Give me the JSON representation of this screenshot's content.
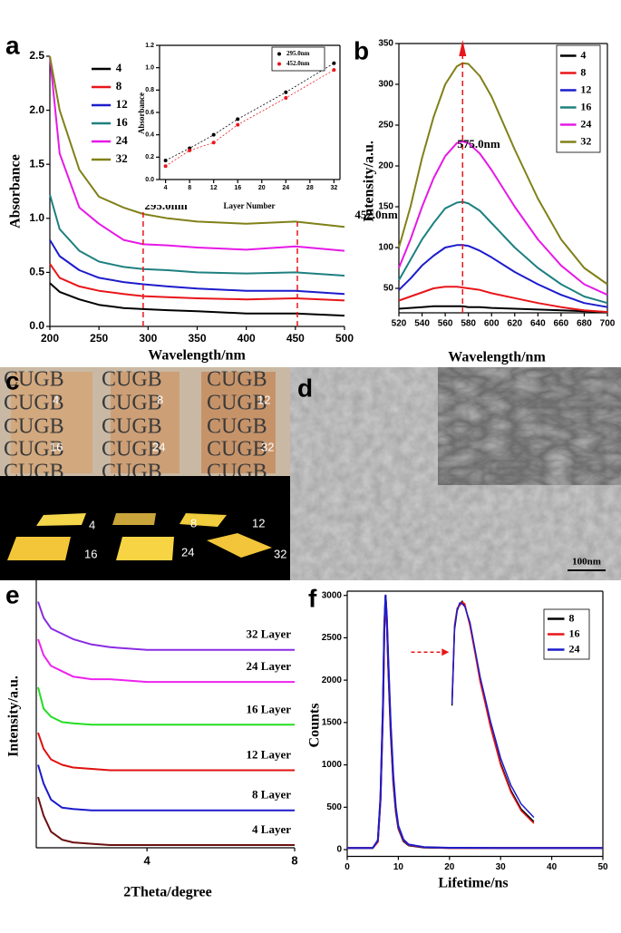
{
  "panel_labels": [
    "a",
    "b",
    "c",
    "d",
    "e",
    "f"
  ],
  "photo": {
    "watermark": "CUGB",
    "labels": [
      "4",
      "8",
      "12",
      "16",
      "24",
      "32"
    ]
  },
  "sem": {
    "scale_bar": "100nm"
  },
  "chart_data": [
    {
      "type": "line",
      "xlabel": "Wavelength/nm",
      "ylabel": "Absorbance",
      "legend": "upper left",
      "x": [
        200,
        210,
        230,
        250,
        275,
        295,
        320,
        350,
        400,
        450,
        500
      ],
      "xlim": [
        200,
        500
      ],
      "ylim": [
        0,
        2.5
      ],
      "xticks": [
        200,
        250,
        300,
        350,
        400,
        450,
        500
      ],
      "yticks": [
        {
          "value": 0,
          "label": "0.0"
        },
        0.5,
        {
          "value": 1,
          "label": "1.0"
        },
        1.5,
        {
          "value": 2,
          "label": "2.0"
        },
        2.5
      ],
      "annotations": [
        {
          "x": 295,
          "label": "295.0nm"
        },
        {
          "x": 452,
          "label": "452.0nm"
        }
      ],
      "series": [
        {
          "name": "4",
          "color": "#000000",
          "values": [
            0.4,
            0.32,
            0.25,
            0.2,
            0.17,
            0.16,
            0.15,
            0.14,
            0.12,
            0.12,
            0.1
          ]
        },
        {
          "name": "8",
          "color": "#e8161a",
          "values": [
            0.58,
            0.45,
            0.37,
            0.33,
            0.3,
            0.28,
            0.27,
            0.26,
            0.25,
            0.26,
            0.24
          ]
        },
        {
          "name": "12",
          "color": "#1c1ccc",
          "values": [
            0.8,
            0.65,
            0.52,
            0.45,
            0.41,
            0.39,
            0.37,
            0.35,
            0.33,
            0.33,
            0.3
          ]
        },
        {
          "name": "16",
          "color": "#1f8080",
          "values": [
            1.22,
            0.9,
            0.7,
            0.6,
            0.55,
            0.53,
            0.52,
            0.5,
            0.49,
            0.5,
            0.47
          ]
        },
        {
          "name": "24",
          "color": "#e619e6",
          "values": [
            2.5,
            1.6,
            1.1,
            0.95,
            0.8,
            0.76,
            0.75,
            0.73,
            0.71,
            0.74,
            0.7
          ]
        },
        {
          "name": "32",
          "color": "#808019",
          "values": [
            2.5,
            2.0,
            1.45,
            1.2,
            1.1,
            1.04,
            1.0,
            0.97,
            0.95,
            0.97,
            0.92
          ]
        }
      ]
    },
    {
      "type": "scatter",
      "xlabel": "Layer Number",
      "ylabel": "Absorbance",
      "legend": "upper right",
      "x": [
        4,
        8,
        12,
        16,
        24,
        32
      ],
      "xlim": [
        3,
        33
      ],
      "ylim": [
        0,
        1.2
      ],
      "xticks": [
        4,
        8,
        12,
        16,
        20,
        24,
        28,
        32
      ],
      "yticks": [
        {
          "value": 0,
          "label": "0.0"
        },
        0.2,
        0.4,
        0.6,
        0.8,
        {
          "value": 1,
          "label": "1.0"
        },
        1.2
      ],
      "series": [
        {
          "name": "295.0nm",
          "color": "#000000",
          "values": [
            0.17,
            0.28,
            0.4,
            0.54,
            0.78,
            1.04
          ]
        },
        {
          "name": "452.0nm",
          "color": "#e8161a",
          "values": [
            0.12,
            0.26,
            0.33,
            0.49,
            0.73,
            0.98
          ]
        }
      ]
    },
    {
      "type": "line",
      "xlabel": "Wavelength/nm",
      "ylabel": "Intensity/a.u.",
      "legend": "upper right",
      "x": [
        520,
        530,
        540,
        550,
        560,
        570,
        575,
        580,
        590,
        600,
        620,
        640,
        660,
        680,
        700
      ],
      "xlim": [
        520,
        700
      ],
      "ylim": [
        20,
        350
      ],
      "xticks": [
        520,
        540,
        560,
        580,
        600,
        620,
        640,
        660,
        680,
        700
      ],
      "yticks": [
        50,
        100,
        150,
        200,
        250,
        300,
        350
      ],
      "annotations": [
        {
          "x": 575,
          "label": "575.0nm"
        }
      ],
      "series": [
        {
          "name": "4",
          "color": "#000000",
          "values": [
            25,
            26,
            27,
            28,
            28,
            28,
            28,
            27,
            27,
            26,
            25,
            24,
            23,
            22,
            21
          ]
        },
        {
          "name": "8",
          "color": "#e8161a",
          "values": [
            35,
            40,
            45,
            50,
            52,
            52,
            51,
            50,
            48,
            44,
            38,
            32,
            27,
            23,
            21
          ]
        },
        {
          "name": "12",
          "color": "#1c1ccc",
          "values": [
            48,
            62,
            78,
            90,
            100,
            103,
            103,
            102,
            96,
            88,
            70,
            55,
            42,
            32,
            27
          ]
        },
        {
          "name": "16",
          "color": "#1f8080",
          "values": [
            60,
            85,
            110,
            130,
            148,
            155,
            156,
            154,
            145,
            130,
            100,
            75,
            55,
            40,
            32
          ]
        },
        {
          "name": "24",
          "color": "#e619e6",
          "values": [
            75,
            110,
            150,
            185,
            212,
            228,
            230,
            228,
            215,
            195,
            150,
            110,
            78,
            55,
            42
          ]
        },
        {
          "name": "32",
          "color": "#808019",
          "values": [
            100,
            150,
            210,
            260,
            300,
            322,
            326,
            325,
            310,
            285,
            220,
            160,
            110,
            75,
            55
          ]
        }
      ]
    },
    {
      "type": "line",
      "xlabel": "2Theta/degree",
      "ylabel": "Intensity/a.u.",
      "legend": "inline",
      "x": [
        1.05,
        1.2,
        1.4,
        1.7,
        2,
        2.5,
        3,
        4,
        5,
        6,
        7,
        8
      ],
      "xlim": [
        1,
        8
      ],
      "ylim": [
        0,
        100
      ],
      "xticks": [
        4,
        8
      ],
      "series": [
        {
          "name": "4 Layer",
          "color": "#6b1010",
          "values": [
            19,
            12,
            6,
            3,
            2,
            1.5,
            1,
            1,
            1,
            1,
            1,
            1
          ]
        },
        {
          "name": "8 Layer",
          "color": "#1a1acc",
          "values": [
            31,
            24,
            18,
            15,
            14.5,
            14,
            14,
            14,
            14,
            14,
            14,
            14
          ]
        },
        {
          "name": "12 Layer",
          "color": "#e01010",
          "values": [
            43,
            37,
            33,
            31,
            30,
            29.5,
            29,
            29,
            29,
            29,
            29,
            29
          ]
        },
        {
          "name": "16 Layer",
          "color": "#22dd22",
          "values": [
            60,
            52,
            49,
            47,
            46.5,
            46,
            46,
            46,
            46,
            46,
            46,
            46
          ]
        },
        {
          "name": "24 Layer",
          "color": "#ee22ee",
          "values": [
            78,
            72,
            68,
            66,
            64,
            63,
            63,
            62,
            62,
            62,
            62,
            62
          ]
        },
        {
          "name": "32 Layer",
          "color": "#8a2be2",
          "values": [
            92,
            86,
            82,
            80,
            78,
            76,
            75,
            74,
            74,
            74,
            74,
            74
          ]
        }
      ]
    },
    {
      "type": "line",
      "xlabel": "Lifetime/ns",
      "ylabel": "Counts",
      "legend": "upper right",
      "x": [
        0,
        5,
        6,
        6.5,
        7,
        7.25,
        7.5,
        7.75,
        8,
        8.5,
        9,
        9.5,
        10,
        11,
        12,
        15,
        20,
        30,
        40,
        50
      ],
      "xlim": [
        0,
        50
      ],
      "ylim": [
        -80,
        3050
      ],
      "xticks": [
        0,
        10,
        20,
        30,
        40,
        50
      ],
      "yticks": [
        0,
        500,
        1000,
        1500,
        2000,
        2500,
        3000
      ],
      "series": [
        {
          "name": "8",
          "color": "#000000",
          "values": [
            20,
            20,
            100,
            600,
            1700,
            2600,
            3000,
            2700,
            2200,
            1400,
            800,
            450,
            250,
            100,
            50,
            25,
            20,
            20,
            20,
            20
          ]
        },
        {
          "name": "16",
          "color": "#e8161a",
          "values": [
            20,
            20,
            90,
            580,
            1650,
            2550,
            2980,
            2720,
            2250,
            1450,
            830,
            470,
            260,
            110,
            55,
            28,
            20,
            20,
            20,
            20
          ]
        },
        {
          "name": "24",
          "color": "#1c1ccc",
          "values": [
            20,
            20,
            110,
            620,
            1750,
            2650,
            3000,
            2750,
            2300,
            1500,
            880,
            500,
            280,
            120,
            60,
            30,
            22,
            20,
            20,
            20
          ]
        }
      ],
      "inset": {
        "x": [
          20.5,
          21,
          21.5,
          22,
          22.5,
          23,
          24,
          25,
          26,
          27,
          28,
          30,
          32,
          34,
          36.5
        ],
        "series": [
          {
            "values": [
              1700,
              2600,
              2820,
              2900,
              2930,
              2880,
              2650,
              2330,
              2000,
              1730,
              1460,
              1020,
              700,
              480,
              330
            ]
          },
          {
            "values": [
              1750,
              2650,
              2850,
              2880,
              2920,
              2900,
              2640,
              2320,
              1980,
              1720,
              1450,
              1000,
              680,
              460,
              310
            ]
          },
          {
            "values": [
              1720,
              2620,
              2830,
              2910,
              2900,
              2870,
              2680,
              2360,
              2040,
              1780,
              1520,
              1080,
              760,
              540,
              380
            ]
          }
        ]
      }
    }
  ]
}
